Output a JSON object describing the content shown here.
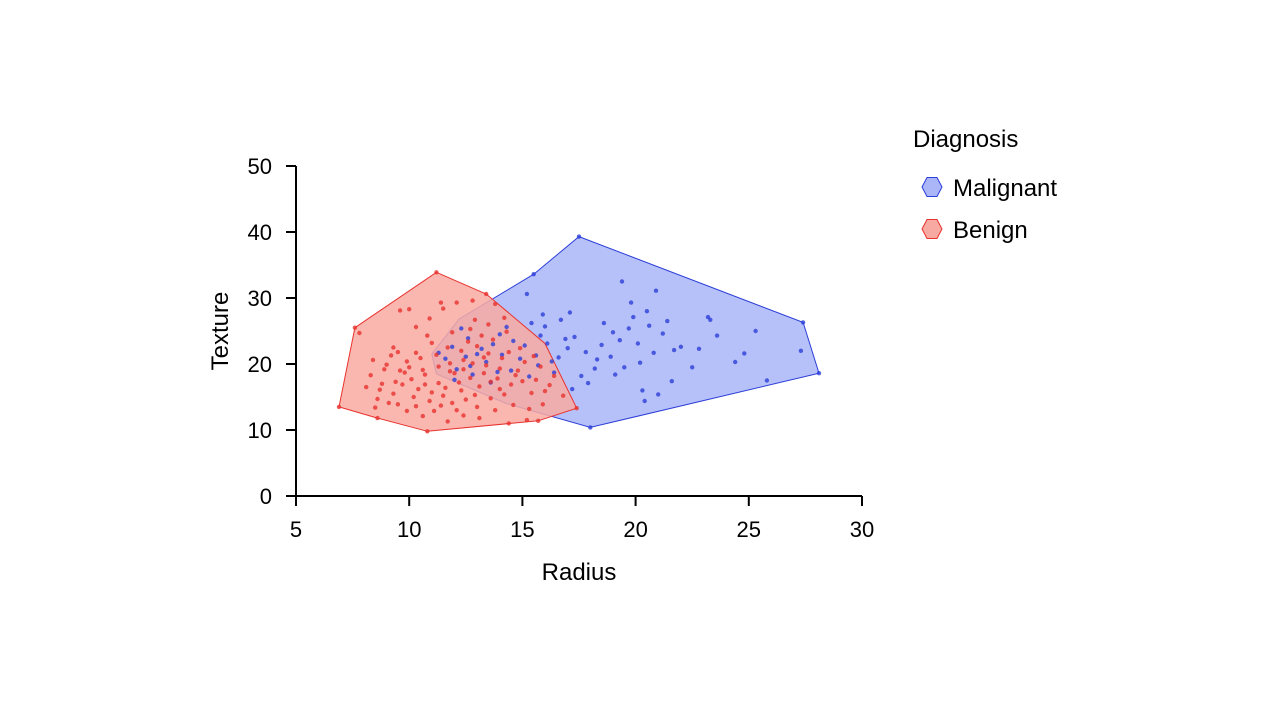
{
  "chart_data": {
    "type": "scatter",
    "xlabel": "Radius",
    "ylabel": "Texture",
    "xlim": [
      5,
      30
    ],
    "ylim": [
      0,
      50
    ],
    "xticks": [
      5,
      10,
      15,
      20,
      25,
      30
    ],
    "yticks": [
      0,
      10,
      20,
      30,
      40,
      50
    ],
    "grid": false,
    "legend": {
      "title": "Diagnosis",
      "position": "top-right",
      "entries": [
        "Malignant",
        "Benign"
      ]
    },
    "series": [
      {
        "name": "Malignant",
        "color": "#2c3fd8",
        "fill": "#aab6f8",
        "hull": [
          [
            17.5,
            39.3
          ],
          [
            27.4,
            26.3
          ],
          [
            28.1,
            18.6
          ],
          [
            18.0,
            10.4
          ],
          [
            14.3,
            14.0
          ],
          [
            11.2,
            18.5
          ],
          [
            11.0,
            21.5
          ],
          [
            12.2,
            26.8
          ],
          [
            15.5,
            33.6
          ]
        ],
        "points": [
          [
            17.5,
            39.3
          ],
          [
            27.4,
            26.3
          ],
          [
            28.1,
            18.6
          ],
          [
            18.0,
            10.4
          ],
          [
            15.5,
            33.6
          ],
          [
            15.2,
            30.6
          ],
          [
            19.4,
            32.5
          ],
          [
            20.9,
            31.1
          ],
          [
            19.8,
            29.3
          ],
          [
            20.5,
            28.0
          ],
          [
            21.4,
            26.5
          ],
          [
            23.2,
            27.1
          ],
          [
            23.3,
            26.7
          ],
          [
            25.3,
            25.0
          ],
          [
            23.6,
            24.3
          ],
          [
            24.8,
            21.6
          ],
          [
            24.4,
            20.3
          ],
          [
            25.8,
            17.5
          ],
          [
            27.3,
            22.0
          ],
          [
            22.0,
            22.6
          ],
          [
            21.7,
            22.1
          ],
          [
            22.5,
            19.5
          ],
          [
            21.6,
            17.4
          ],
          [
            21.0,
            15.4
          ],
          [
            20.3,
            16.0
          ],
          [
            20.4,
            14.4
          ],
          [
            19.5,
            19.5
          ],
          [
            19.1,
            18.4
          ],
          [
            18.3,
            20.7
          ],
          [
            17.9,
            17.1
          ],
          [
            17.6,
            18.2
          ],
          [
            17.2,
            16.2
          ],
          [
            16.6,
            21.0
          ],
          [
            16.1,
            23.1
          ],
          [
            15.8,
            24.3
          ],
          [
            15.4,
            26.2
          ],
          [
            14.3,
            25.6
          ],
          [
            14.6,
            23.5
          ],
          [
            14.1,
            21.4
          ],
          [
            13.4,
            20.3
          ],
          [
            13.0,
            21.5
          ],
          [
            12.6,
            23.9
          ],
          [
            12.3,
            25.4
          ],
          [
            12.8,
            18.4
          ],
          [
            12.1,
            19.2
          ],
          [
            11.6,
            20.8
          ],
          [
            11.3,
            21.7
          ],
          [
            12.0,
            17.6
          ],
          [
            13.6,
            17.2
          ],
          [
            14.5,
            19.0
          ],
          [
            15.3,
            18.1
          ],
          [
            15.7,
            19.8
          ],
          [
            16.3,
            20.4
          ],
          [
            17.0,
            22.4
          ],
          [
            18.5,
            22.9
          ],
          [
            19.0,
            24.8
          ],
          [
            19.7,
            25.4
          ],
          [
            20.1,
            23.1
          ],
          [
            20.8,
            21.7
          ],
          [
            18.9,
            21.1
          ],
          [
            18.2,
            19.3
          ],
          [
            17.8,
            21.8
          ],
          [
            16.9,
            23.8
          ],
          [
            16.0,
            25.7
          ],
          [
            15.1,
            22.8
          ],
          [
            14.9,
            20.8
          ],
          [
            14.0,
            24.5
          ],
          [
            13.7,
            23.0
          ],
          [
            13.2,
            22.3
          ],
          [
            12.5,
            21.1
          ],
          [
            11.9,
            22.6
          ],
          [
            12.7,
            19.7
          ],
          [
            13.9,
            18.8
          ],
          [
            15.6,
            21.3
          ],
          [
            16.4,
            18.7
          ],
          [
            17.3,
            24.1
          ],
          [
            18.6,
            26.2
          ],
          [
            19.3,
            23.6
          ],
          [
            20.2,
            20.2
          ],
          [
            21.2,
            24.6
          ],
          [
            22.8,
            22.3
          ],
          [
            20.6,
            25.8
          ],
          [
            19.9,
            27.1
          ],
          [
            17.1,
            27.8
          ],
          [
            16.7,
            26.7
          ],
          [
            15.9,
            27.5
          ]
        ]
      },
      {
        "name": "Benign",
        "color": "#e8322e",
        "fill": "#f8aaa2",
        "hull": [
          [
            11.2,
            33.9
          ],
          [
            13.4,
            30.6
          ],
          [
            16.0,
            23.1
          ],
          [
            17.4,
            13.3
          ],
          [
            15.7,
            11.4
          ],
          [
            10.8,
            9.8
          ],
          [
            8.6,
            11.8
          ],
          [
            6.9,
            13.5
          ],
          [
            7.6,
            25.5
          ]
        ],
        "points": [
          [
            11.2,
            33.9
          ],
          [
            13.4,
            30.6
          ],
          [
            17.4,
            13.3
          ],
          [
            15.7,
            11.4
          ],
          [
            10.8,
            9.8
          ],
          [
            8.6,
            11.8
          ],
          [
            6.9,
            13.5
          ],
          [
            7.6,
            25.5
          ],
          [
            7.8,
            24.7
          ],
          [
            9.6,
            28.1
          ],
          [
            10.0,
            28.3
          ],
          [
            11.4,
            29.3
          ],
          [
            12.1,
            29.3
          ],
          [
            12.8,
            29.6
          ],
          [
            13.8,
            29.1
          ],
          [
            11.5,
            28.4
          ],
          [
            12.9,
            26.7
          ],
          [
            10.8,
            24.3
          ],
          [
            9.5,
            21.8
          ],
          [
            9.2,
            21.3
          ],
          [
            8.4,
            20.6
          ],
          [
            8.9,
            19.2
          ],
          [
            9.8,
            18.7
          ],
          [
            8.3,
            18.3
          ],
          [
            8.7,
            16.1
          ],
          [
            9.3,
            15.5
          ],
          [
            9.1,
            14.1
          ],
          [
            8.5,
            13.4
          ],
          [
            9.9,
            12.9
          ],
          [
            10.3,
            13.6
          ],
          [
            10.6,
            12.1
          ],
          [
            11.1,
            12.9
          ],
          [
            11.7,
            11.3
          ],
          [
            12.4,
            12.2
          ],
          [
            13.1,
            11.8
          ],
          [
            14.4,
            11.0
          ],
          [
            15.2,
            11.5
          ],
          [
            15.9,
            13.9
          ],
          [
            15.4,
            15.6
          ],
          [
            16.2,
            16.8
          ],
          [
            15.0,
            17.4
          ],
          [
            14.8,
            19.0
          ],
          [
            14.1,
            20.9
          ],
          [
            13.5,
            21.6
          ],
          [
            13.0,
            22.7
          ],
          [
            12.3,
            22.0
          ],
          [
            11.8,
            20.1
          ],
          [
            11.3,
            19.6
          ],
          [
            10.7,
            18.4
          ],
          [
            10.1,
            17.7
          ],
          [
            9.7,
            16.9
          ],
          [
            10.4,
            16.2
          ],
          [
            11.0,
            15.7
          ],
          [
            11.6,
            16.4
          ],
          [
            12.2,
            17.2
          ],
          [
            12.7,
            17.9
          ],
          [
            13.3,
            18.6
          ],
          [
            13.9,
            17.8
          ],
          [
            14.5,
            16.9
          ],
          [
            14.2,
            15.4
          ],
          [
            13.6,
            14.8
          ],
          [
            12.9,
            15.3
          ],
          [
            12.5,
            14.6
          ],
          [
            11.9,
            14.1
          ],
          [
            11.4,
            13.7
          ],
          [
            10.9,
            14.4
          ],
          [
            10.2,
            15.0
          ],
          [
            9.4,
            17.3
          ],
          [
            8.8,
            17.0
          ],
          [
            9.0,
            19.9
          ],
          [
            9.9,
            20.4
          ],
          [
            10.5,
            20.9
          ],
          [
            11.2,
            21.4
          ],
          [
            11.7,
            22.5
          ],
          [
            12.6,
            23.4
          ],
          [
            13.2,
            24.3
          ],
          [
            13.7,
            23.7
          ],
          [
            14.3,
            24.9
          ],
          [
            14.9,
            22.4
          ],
          [
            15.5,
            21.2
          ],
          [
            15.8,
            19.6
          ],
          [
            16.4,
            18.2
          ],
          [
            16.8,
            15.2
          ],
          [
            15.3,
            13.2
          ],
          [
            14.6,
            13.8
          ],
          [
            13.8,
            13.0
          ],
          [
            13.0,
            13.5
          ],
          [
            12.1,
            13.0
          ],
          [
            11.5,
            15.2
          ],
          [
            12.0,
            18.6
          ],
          [
            12.4,
            19.2
          ],
          [
            12.8,
            20.1
          ],
          [
            13.4,
            19.8
          ],
          [
            14.0,
            19.3
          ],
          [
            14.7,
            18.3
          ],
          [
            13.1,
            16.6
          ],
          [
            12.3,
            16.0
          ],
          [
            11.3,
            17.1
          ],
          [
            10.6,
            19.1
          ],
          [
            10.0,
            19.5
          ],
          [
            9.6,
            19.0
          ],
          [
            10.3,
            21.7
          ],
          [
            11.0,
            23.2
          ],
          [
            11.9,
            24.8
          ],
          [
            12.7,
            25.3
          ],
          [
            13.5,
            26.0
          ],
          [
            14.2,
            27.0
          ],
          [
            10.9,
            26.9
          ],
          [
            10.3,
            25.6
          ],
          [
            9.3,
            22.5
          ],
          [
            8.1,
            16.5
          ],
          [
            8.6,
            14.7
          ],
          [
            9.5,
            13.9
          ],
          [
            10.7,
            16.9
          ],
          [
            11.8,
            18.9
          ],
          [
            12.4,
            20.6
          ],
          [
            13.3,
            21.0
          ],
          [
            14.4,
            21.8
          ],
          [
            15.1,
            20.3
          ],
          [
            15.6,
            17.6
          ],
          [
            16.0,
            15.9
          ],
          [
            14.0,
            16.2
          ],
          [
            13.6,
            17.3
          ]
        ]
      }
    ]
  }
}
